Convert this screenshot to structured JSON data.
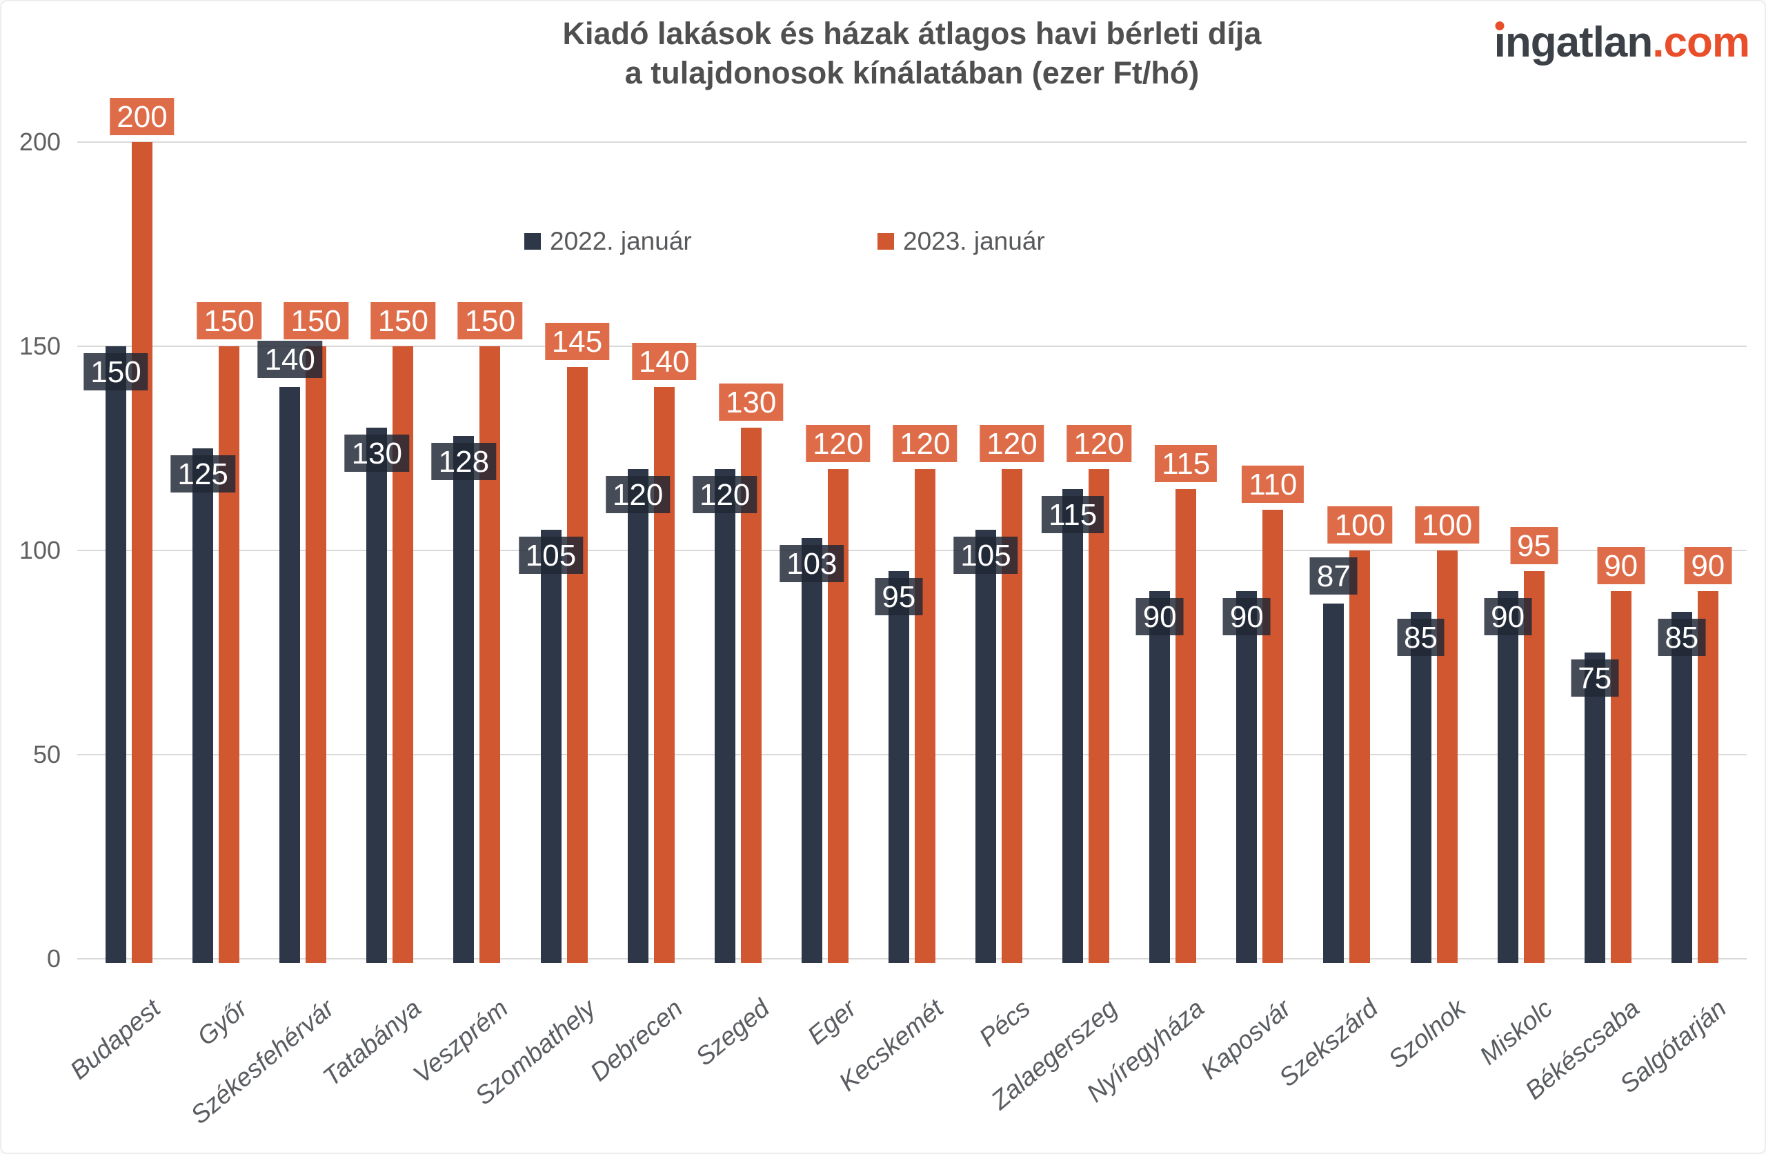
{
  "title": {
    "line1": "Kiadó lakások és házak átlagos havi bérleti díja",
    "line2": "a tulajdonosok kínálatában (ezer Ft/hó)"
  },
  "logo": {
    "brand": "ingatlan",
    "tld": ".com",
    "color_dark": "#3b4147",
    "color_accent": "#e94e2b"
  },
  "legend": [
    {
      "label": "2022. január",
      "color": "#2d3748"
    },
    {
      "label": "2023. január",
      "color": "#d15730"
    }
  ],
  "colors": {
    "gridline": "#d9d9d9",
    "tick_text": "#606060",
    "city_text": "#595c60",
    "title_text": "#4f4f4f"
  },
  "chart_data": {
    "type": "bar",
    "title": "Kiadó lakások és házak átlagos havi bérleti díja a tulajdonosok kínálatában (ezer Ft/hó)",
    "categories": [
      "Budapest",
      "Győr",
      "Székesfehérvár",
      "Tatabánya",
      "Veszprém",
      "Szombathely",
      "Debrecen",
      "Szeged",
      "Eger",
      "Kecskemét",
      "Pécs",
      "Zalaegerszeg",
      "Nyíregyháza",
      "Kaposvár",
      "Szekszárd",
      "Szolnok",
      "Miskolc",
      "Békéscsaba",
      "Salgótarján"
    ],
    "series": [
      {
        "name": "2022. január",
        "color": "#2d3748",
        "label_bg": "rgba(33,40,53,0.83)",
        "values": [
          150,
          125,
          140,
          130,
          128,
          105,
          120,
          120,
          103,
          95,
          105,
          115,
          90,
          90,
          87,
          85,
          90,
          75,
          85
        ]
      },
      {
        "name": "2023. január",
        "color": "#d15730",
        "label_bg": "#de6c49",
        "values": [
          200,
          150,
          150,
          150,
          150,
          145,
          140,
          130,
          120,
          120,
          120,
          120,
          115,
          110,
          100,
          100,
          95,
          90,
          90
        ]
      }
    ],
    "ylim": [
      0,
      200
    ],
    "yticks": [
      0,
      50,
      100,
      150,
      200
    ],
    "grid": true,
    "value_labels": true,
    "legend_position": "top-inside",
    "labels_float_above_series1_indices": [
      2,
      14
    ]
  }
}
